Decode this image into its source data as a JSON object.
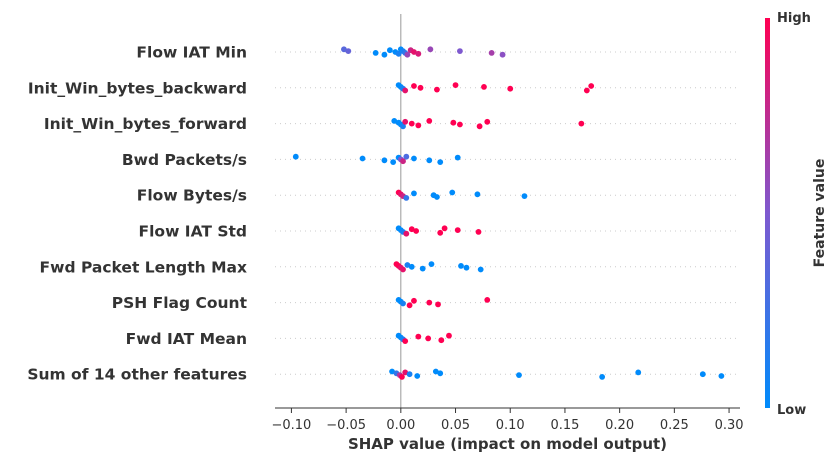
{
  "chart_data": {
    "type": "scatter",
    "title": "",
    "xlabel": "SHAP value (impact on model output)",
    "ylabel": "",
    "xlim": [
      -0.115,
      0.31
    ],
    "x_ticks": [
      -0.1,
      -0.05,
      0.0,
      0.05,
      0.1,
      0.15,
      0.2,
      0.25,
      0.3
    ],
    "x_tick_labels": [
      "−0.10",
      "−0.05",
      "0.00",
      "0.05",
      "0.10",
      "0.15",
      "0.20",
      "0.25",
      "0.30"
    ],
    "grid": false,
    "colorbar": {
      "high_label": "High",
      "low_label": "Low",
      "title": "Feature value",
      "low_color": "#008bfb",
      "mid_color": "#7e59cf",
      "high_color": "#ff0052"
    },
    "features": [
      {
        "name": "Flow IAT Min",
        "points": [
          {
            "x": -0.052,
            "v": 0.35
          },
          {
            "x": -0.048,
            "v": 0.4
          },
          {
            "x": -0.023,
            "v": 0.0
          },
          {
            "x": -0.015,
            "v": 0.0
          },
          {
            "x": -0.01,
            "v": 0.0
          },
          {
            "x": -0.005,
            "v": 0.0
          },
          {
            "x": -0.002,
            "v": 0.1
          },
          {
            "x": 0.0,
            "v": 0.0
          },
          {
            "x": 0.002,
            "v": 0.1
          },
          {
            "x": 0.004,
            "v": 0.2
          },
          {
            "x": 0.006,
            "v": 0.6
          },
          {
            "x": 0.009,
            "v": 0.8
          },
          {
            "x": 0.012,
            "v": 0.9
          },
          {
            "x": 0.016,
            "v": 0.85
          },
          {
            "x": 0.027,
            "v": 0.6
          },
          {
            "x": 0.054,
            "v": 0.5
          },
          {
            "x": 0.083,
            "v": 0.65
          },
          {
            "x": 0.093,
            "v": 0.55
          }
        ]
      },
      {
        "name": "Init_Win_bytes_backward",
        "points": [
          {
            "x": -0.002,
            "v": 0.0
          },
          {
            "x": 0.0,
            "v": 0.0
          },
          {
            "x": 0.002,
            "v": 0.1
          },
          {
            "x": 0.004,
            "v": 0.9
          },
          {
            "x": 0.012,
            "v": 1.0
          },
          {
            "x": 0.018,
            "v": 1.0
          },
          {
            "x": 0.033,
            "v": 1.0
          },
          {
            "x": 0.05,
            "v": 1.0
          },
          {
            "x": 0.076,
            "v": 1.0
          },
          {
            "x": 0.1,
            "v": 1.0
          },
          {
            "x": 0.17,
            "v": 1.0
          },
          {
            "x": 0.174,
            "v": 1.0
          }
        ]
      },
      {
        "name": "Init_Win_bytes_forward",
        "points": [
          {
            "x": -0.006,
            "v": 0.0
          },
          {
            "x": -0.002,
            "v": 0.0
          },
          {
            "x": 0.0,
            "v": 0.0
          },
          {
            "x": 0.002,
            "v": 0.1
          },
          {
            "x": 0.004,
            "v": 0.9
          },
          {
            "x": 0.01,
            "v": 1.0
          },
          {
            "x": 0.016,
            "v": 1.0
          },
          {
            "x": 0.026,
            "v": 1.0
          },
          {
            "x": 0.048,
            "v": 1.0
          },
          {
            "x": 0.054,
            "v": 1.0
          },
          {
            "x": 0.072,
            "v": 1.0
          },
          {
            "x": 0.079,
            "v": 1.0
          },
          {
            "x": 0.165,
            "v": 1.0
          }
        ]
      },
      {
        "name": "Bwd Packets/s",
        "points": [
          {
            "x": -0.096,
            "v": 0.0
          },
          {
            "x": -0.035,
            "v": 0.0
          },
          {
            "x": -0.015,
            "v": 0.0
          },
          {
            "x": -0.007,
            "v": 0.0
          },
          {
            "x": -0.002,
            "v": 0.0
          },
          {
            "x": 0.0,
            "v": 0.5
          },
          {
            "x": 0.002,
            "v": 0.8
          },
          {
            "x": 0.005,
            "v": 0.3
          },
          {
            "x": 0.012,
            "v": 0.0
          },
          {
            "x": 0.026,
            "v": 0.0
          },
          {
            "x": 0.036,
            "v": 0.0
          },
          {
            "x": 0.052,
            "v": 0.0
          }
        ]
      },
      {
        "name": "Flow Bytes/s",
        "points": [
          {
            "x": -0.002,
            "v": 1.0
          },
          {
            "x": 0.0,
            "v": 0.9
          },
          {
            "x": 0.002,
            "v": 0.8
          },
          {
            "x": 0.005,
            "v": 0.2
          },
          {
            "x": 0.012,
            "v": 0.0
          },
          {
            "x": 0.03,
            "v": 0.0
          },
          {
            "x": 0.033,
            "v": 0.0
          },
          {
            "x": 0.047,
            "v": 0.0
          },
          {
            "x": 0.07,
            "v": 0.0
          },
          {
            "x": 0.113,
            "v": 0.0
          }
        ]
      },
      {
        "name": "Flow IAT Std",
        "points": [
          {
            "x": -0.002,
            "v": 0.0
          },
          {
            "x": 0.0,
            "v": 0.0
          },
          {
            "x": 0.002,
            "v": 0.1
          },
          {
            "x": 0.005,
            "v": 0.9
          },
          {
            "x": 0.01,
            "v": 1.0
          },
          {
            "x": 0.014,
            "v": 1.0
          },
          {
            "x": 0.036,
            "v": 1.0
          },
          {
            "x": 0.04,
            "v": 1.0
          },
          {
            "x": 0.052,
            "v": 1.0
          },
          {
            "x": 0.071,
            "v": 1.0
          }
        ]
      },
      {
        "name": "Fwd Packet Length Max",
        "points": [
          {
            "x": -0.004,
            "v": 1.0
          },
          {
            "x": -0.002,
            "v": 1.0
          },
          {
            "x": 0.0,
            "v": 0.9
          },
          {
            "x": 0.002,
            "v": 0.9
          },
          {
            "x": 0.006,
            "v": 0.1
          },
          {
            "x": 0.01,
            "v": 0.0
          },
          {
            "x": 0.02,
            "v": 0.0
          },
          {
            "x": 0.028,
            "v": 0.0
          },
          {
            "x": 0.055,
            "v": 0.0
          },
          {
            "x": 0.06,
            "v": 0.0
          },
          {
            "x": 0.073,
            "v": 0.0
          }
        ]
      },
      {
        "name": "PSH Flag Count",
        "points": [
          {
            "x": -0.002,
            "v": 0.0
          },
          {
            "x": 0.0,
            "v": 0.0
          },
          {
            "x": 0.002,
            "v": 0.1
          },
          {
            "x": 0.008,
            "v": 1.0
          },
          {
            "x": 0.012,
            "v": 1.0
          },
          {
            "x": 0.026,
            "v": 1.0
          },
          {
            "x": 0.034,
            "v": 1.0
          },
          {
            "x": 0.079,
            "v": 1.0
          }
        ]
      },
      {
        "name": "Fwd IAT Mean",
        "points": [
          {
            "x": -0.002,
            "v": 0.0
          },
          {
            "x": 0.0,
            "v": 0.0
          },
          {
            "x": 0.002,
            "v": 0.1
          },
          {
            "x": 0.004,
            "v": 1.0
          },
          {
            "x": 0.016,
            "v": 1.0
          },
          {
            "x": 0.025,
            "v": 1.0
          },
          {
            "x": 0.037,
            "v": 1.0
          },
          {
            "x": 0.044,
            "v": 1.0
          }
        ]
      },
      {
        "name": "Sum of 14 other features",
        "points": [
          {
            "x": -0.008,
            "v": 0.0
          },
          {
            "x": -0.004,
            "v": 0.2
          },
          {
            "x": -0.001,
            "v": 0.7
          },
          {
            "x": 0.001,
            "v": 1.0
          },
          {
            "x": 0.004,
            "v": 0.9
          },
          {
            "x": 0.008,
            "v": 0.1
          },
          {
            "x": 0.015,
            "v": 0.0
          },
          {
            "x": 0.032,
            "v": 0.0
          },
          {
            "x": 0.036,
            "v": 0.0
          },
          {
            "x": 0.108,
            "v": 0.0
          },
          {
            "x": 0.184,
            "v": 0.0
          },
          {
            "x": 0.217,
            "v": 0.0
          },
          {
            "x": 0.276,
            "v": 0.0
          },
          {
            "x": 0.293,
            "v": 0.0
          }
        ]
      }
    ]
  }
}
